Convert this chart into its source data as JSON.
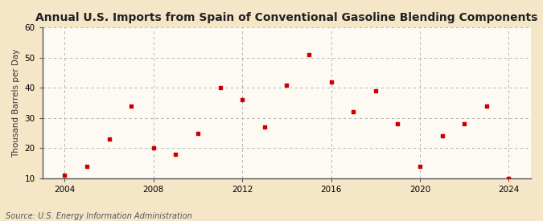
{
  "title": "Annual U.S. Imports from Spain of Conventional Gasoline Blending Components",
  "ylabel": "Thousand Barrels per Day",
  "source": "Source: U.S. Energy Information Administration",
  "background_color": "#f5e6c8",
  "plot_background_color": "#fdfaf3",
  "marker_color": "#cc0000",
  "years": [
    2004,
    2005,
    2006,
    2007,
    2008,
    2009,
    2010,
    2011,
    2012,
    2013,
    2014,
    2015,
    2016,
    2017,
    2018,
    2019,
    2020,
    2021,
    2022,
    2023,
    2024
  ],
  "values": [
    11,
    14,
    23,
    34,
    20,
    18,
    25,
    40,
    36,
    27,
    41,
    51,
    42,
    32,
    39,
    28,
    14,
    24,
    28,
    34,
    10
  ],
  "xlim": [
    2003.0,
    2025.0
  ],
  "ylim": [
    10,
    60
  ],
  "yticks": [
    10,
    20,
    30,
    40,
    50,
    60
  ],
  "xticks": [
    2004,
    2008,
    2012,
    2016,
    2020,
    2024
  ],
  "title_fontsize": 10,
  "label_fontsize": 7.5,
  "tick_fontsize": 7.5,
  "source_fontsize": 7
}
